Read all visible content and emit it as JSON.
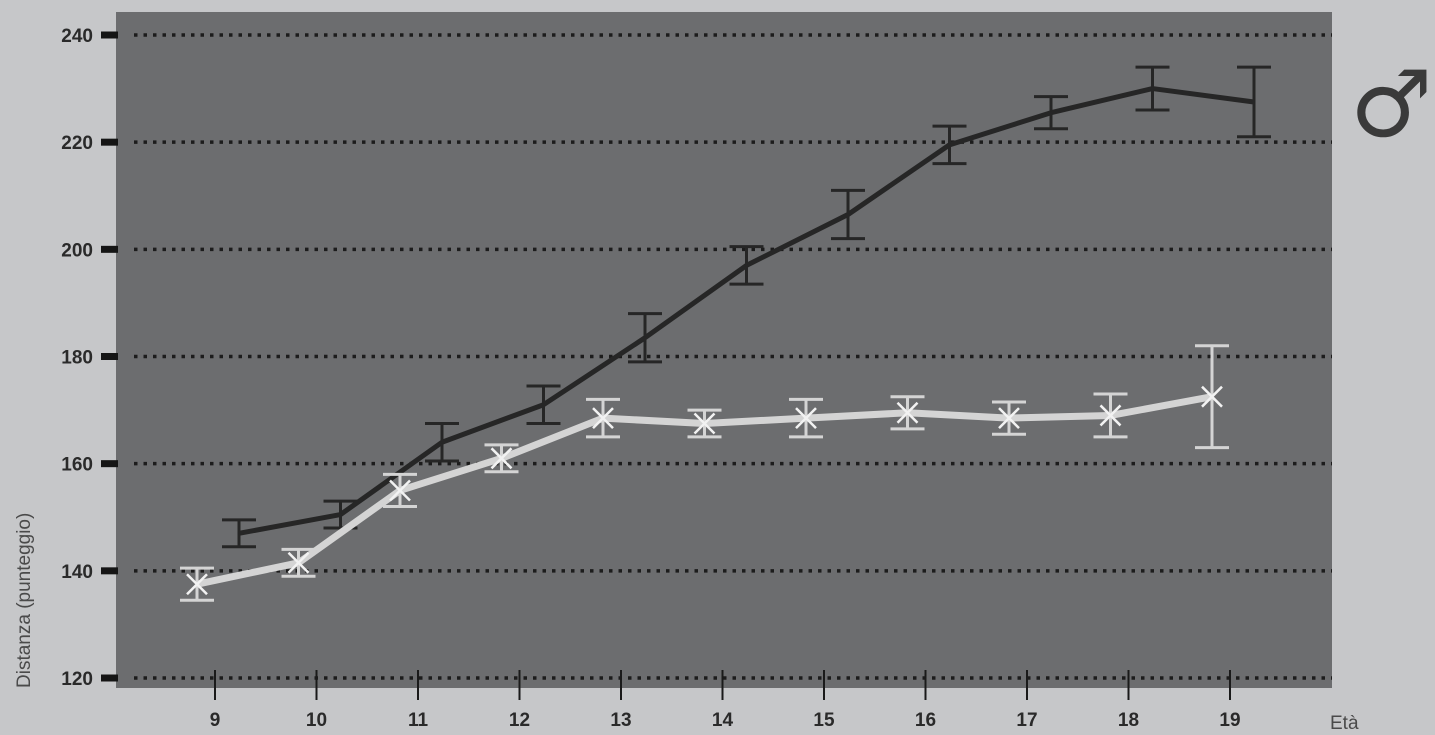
{
  "chart_data": {
    "type": "line",
    "xlabel": "Età",
    "ylabel": "Distanza (punteggio)",
    "symbol": "♂",
    "categories": [
      9,
      10,
      11,
      12,
      13,
      14,
      15,
      16,
      17,
      18,
      19
    ],
    "ylim": [
      120,
      240
    ],
    "yticks": [
      120,
      140,
      160,
      180,
      200,
      220,
      240
    ],
    "grid": true,
    "colors": {
      "background": "#c6c7c9",
      "plot": "#6c6d6f",
      "dark_series": "#262626",
      "light_series": "#d4d4d4",
      "grid": "#1c1c1c"
    },
    "series": [
      {
        "style": "dark",
        "values": [
          147,
          150.5,
          164,
          171,
          183.5,
          197,
          206.5,
          219.5,
          225.5,
          230,
          227.5
        ],
        "err": [
          2.5,
          2.5,
          3.5,
          3.5,
          4.5,
          3.5,
          4.5,
          3.5,
          3,
          4,
          6.5
        ]
      },
      {
        "style": "light",
        "marker": "x",
        "values": [
          137.5,
          141.5,
          155,
          161,
          168.5,
          167.5,
          168.5,
          169.5,
          168.5,
          169,
          172.5
        ],
        "err": [
          3,
          2.5,
          3,
          2.5,
          3.5,
          2.5,
          3.5,
          3,
          3,
          4,
          9.5
        ]
      }
    ]
  }
}
